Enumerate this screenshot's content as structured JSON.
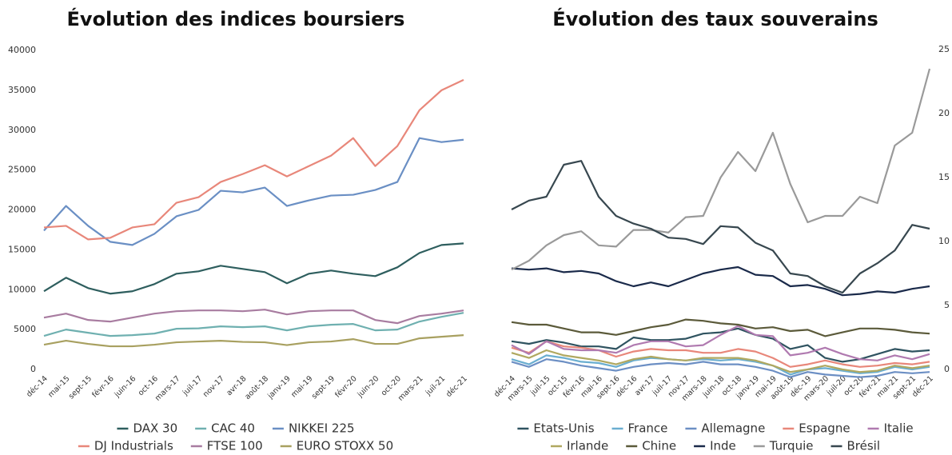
{
  "chart_data": [
    {
      "type": "line",
      "title": "Évolution des indices boursiers",
      "categories": [
        "déc-14",
        "mai-15",
        "sept-15",
        "févr-16",
        "juin-16",
        "oct-16",
        "mars-17",
        "juil-17",
        "nov-17",
        "avr-18",
        "août-18",
        "janv-19",
        "mai-19",
        "sept-19",
        "févr-20",
        "juin-20",
        "oct-20",
        "mars-21",
        "juil-21",
        "déc-21"
      ],
      "ylim": [
        0,
        40000
      ],
      "yticks": [
        0,
        5000,
        10000,
        15000,
        20000,
        25000,
        30000,
        35000,
        40000
      ],
      "yaxis_position": "left",
      "series": [
        {
          "name": "DAX 30",
          "color": "#2e5e5e",
          "values": [
            9800,
            11500,
            10200,
            9500,
            9800,
            10700,
            12000,
            12300,
            13000,
            12600,
            12200,
            10800,
            12000,
            12400,
            12000,
            11700,
            12800,
            14600,
            15600,
            15800
          ]
        },
        {
          "name": "CAC 40",
          "color": "#6fb0b0",
          "values": [
            4200,
            5000,
            4600,
            4200,
            4300,
            4500,
            5100,
            5150,
            5400,
            5300,
            5400,
            4900,
            5400,
            5600,
            5700,
            4900,
            5000,
            6000,
            6600,
            7100
          ]
        },
        {
          "name": "NIKKEI 225",
          "color": "#6a8fc4",
          "values": [
            17400,
            20500,
            18000,
            16000,
            15600,
            17000,
            19200,
            20000,
            22400,
            22200,
            22800,
            20500,
            21200,
            21800,
            21900,
            22500,
            23500,
            29000,
            28500,
            28800
          ]
        },
        {
          "name": "DJ Industrials",
          "color": "#e8877a",
          "values": [
            17800,
            18000,
            16300,
            16500,
            17800,
            18200,
            20900,
            21600,
            23500,
            24500,
            25600,
            24200,
            25500,
            26800,
            29000,
            25500,
            28000,
            32500,
            35000,
            36300
          ]
        },
        {
          "name": "FTSE 100",
          "color": "#a87ca0",
          "values": [
            6500,
            7000,
            6200,
            6000,
            6500,
            7000,
            7300,
            7400,
            7400,
            7300,
            7500,
            6900,
            7300,
            7400,
            7400,
            6200,
            5800,
            6700,
            7000,
            7400
          ]
        },
        {
          "name": "EURO STOXX 50",
          "color": "#a8a060",
          "values": [
            3100,
            3600,
            3200,
            2900,
            2900,
            3100,
            3400,
            3500,
            3600,
            3450,
            3400,
            3050,
            3400,
            3500,
            3800,
            3200,
            3200,
            3900,
            4100,
            4300
          ]
        }
      ]
    },
    {
      "type": "line",
      "title": "Évolution des taux souverains",
      "categories": [
        "déc-14",
        "mars-15",
        "juil-15",
        "oct-15",
        "févr-16",
        "mai-16",
        "sept-16",
        "déc-16",
        "avr-17",
        "juil-17",
        "nov-17",
        "mars-18",
        "juin-18",
        "oct-18",
        "janv-19",
        "mai-19",
        "août-19",
        "déc-19",
        "mars-20",
        "juil-20",
        "oct-20",
        "févr-21",
        "mai-21",
        "sept-21",
        "déc-21"
      ],
      "ylim": [
        0,
        25
      ],
      "yticks": [
        0,
        5,
        10,
        15,
        20,
        25
      ],
      "yaxis_position": "right",
      "series": [
        {
          "name": "Etats-Unis",
          "color": "#2f5360",
          "values": [
            2.2,
            2.0,
            2.3,
            2.1,
            1.8,
            1.8,
            1.6,
            2.5,
            2.3,
            2.3,
            2.4,
            2.8,
            2.9,
            3.2,
            2.7,
            2.4,
            1.6,
            1.9,
            0.9,
            0.6,
            0.8,
            1.2,
            1.6,
            1.4,
            1.5
          ]
        },
        {
          "name": "France",
          "color": "#6aaed0",
          "values": [
            0.8,
            0.4,
            1.1,
            0.9,
            0.6,
            0.5,
            0.2,
            0.7,
            0.9,
            0.8,
            0.7,
            0.8,
            0.7,
            0.8,
            0.6,
            0.3,
            -0.4,
            0.0,
            0.1,
            -0.1,
            -0.3,
            -0.2,
            0.2,
            0.0,
            0.2
          ]
        },
        {
          "name": "Allemagne",
          "color": "#6c8fc4",
          "values": [
            0.6,
            0.2,
            0.8,
            0.6,
            0.3,
            0.1,
            -0.1,
            0.2,
            0.4,
            0.5,
            0.4,
            0.6,
            0.4,
            0.4,
            0.2,
            -0.1,
            -0.6,
            -0.2,
            -0.4,
            -0.5,
            -0.6,
            -0.5,
            -0.2,
            -0.3,
            -0.2
          ]
        },
        {
          "name": "Espagne",
          "color": "#e8877a",
          "values": [
            1.7,
            1.3,
            2.2,
            1.8,
            1.7,
            1.5,
            1.0,
            1.4,
            1.6,
            1.5,
            1.5,
            1.3,
            1.3,
            1.6,
            1.4,
            0.9,
            0.2,
            0.4,
            0.7,
            0.4,
            0.2,
            0.3,
            0.5,
            0.4,
            0.6
          ]
        },
        {
          "name": "Italie",
          "color": "#b07ab0",
          "values": [
            1.9,
            1.2,
            2.2,
            1.6,
            1.5,
            1.5,
            1.3,
            1.9,
            2.2,
            2.2,
            1.8,
            1.9,
            2.7,
            3.4,
            2.7,
            2.6,
            1.1,
            1.3,
            1.7,
            1.2,
            0.8,
            0.7,
            1.1,
            0.8,
            1.2
          ]
        },
        {
          "name": "Irlande",
          "color": "#b0a860",
          "values": [
            1.3,
            0.9,
            1.5,
            1.1,
            0.9,
            0.7,
            0.4,
            0.8,
            1.0,
            0.8,
            0.7,
            0.9,
            0.9,
            0.9,
            0.7,
            0.3,
            -0.2,
            0.0,
            0.3,
            0.0,
            -0.2,
            -0.1,
            0.3,
            0.1,
            0.3
          ]
        },
        {
          "name": "Chine",
          "color": "#5b5a3a",
          "values": [
            3.7,
            3.5,
            3.5,
            3.2,
            2.9,
            2.9,
            2.7,
            3.0,
            3.3,
            3.5,
            3.9,
            3.8,
            3.6,
            3.5,
            3.2,
            3.3,
            3.0,
            3.1,
            2.6,
            2.9,
            3.2,
            3.2,
            3.1,
            2.9,
            2.8
          ]
        },
        {
          "name": "Inde",
          "color": "#1a2a4a",
          "values": [
            7.9,
            7.8,
            7.9,
            7.6,
            7.7,
            7.5,
            6.9,
            6.5,
            6.8,
            6.5,
            7.0,
            7.5,
            7.8,
            8.0,
            7.4,
            7.3,
            6.5,
            6.6,
            6.3,
            5.8,
            5.9,
            6.1,
            6.0,
            6.3,
            6.5
          ]
        },
        {
          "name": "Turquie",
          "color": "#9a9a9a",
          "values": [
            7.8,
            8.5,
            9.7,
            10.5,
            10.8,
            9.7,
            9.6,
            10.9,
            10.9,
            10.7,
            11.9,
            12.0,
            15.0,
            17.0,
            15.5,
            18.5,
            14.5,
            11.5,
            12.0,
            12.0,
            13.5,
            13.0,
            17.5,
            18.5,
            23.5
          ]
        },
        {
          "name": "Brésil",
          "color": "#37474f",
          "values": [
            12.5,
            13.2,
            13.5,
            16.0,
            16.3,
            13.5,
            12.0,
            11.4,
            11.0,
            10.3,
            10.2,
            9.8,
            11.2,
            11.1,
            9.9,
            9.3,
            7.5,
            7.3,
            6.5,
            6.0,
            7.5,
            8.3,
            9.3,
            11.3,
            11.0
          ]
        }
      ]
    }
  ]
}
